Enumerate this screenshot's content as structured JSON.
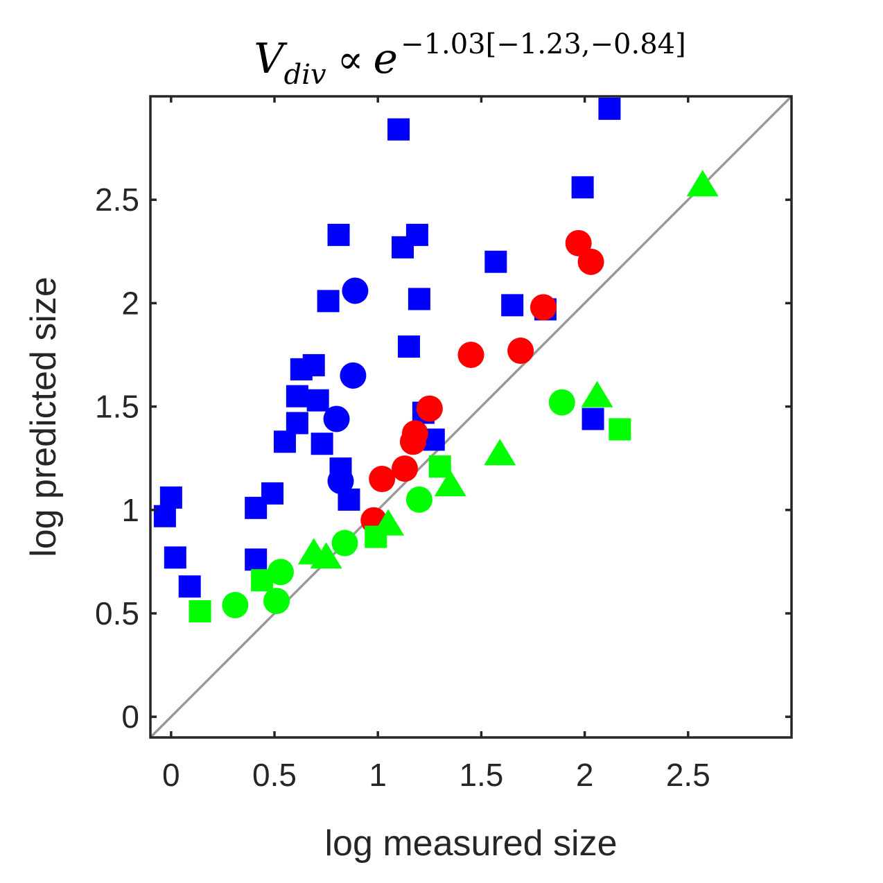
{
  "chart_data": {
    "type": "scatter",
    "title": {
      "lhs": "V",
      "subscript": "div",
      "relation": "∝",
      "base": "e",
      "exponent": "−1.03[−1.23,−0.84]"
    },
    "xlabel": "log measured size",
    "ylabel": "log predicted size",
    "xlim": [
      -0.1,
      3.0
    ],
    "ylim": [
      -0.1,
      3.0
    ],
    "xticks": [
      0,
      0.5,
      1,
      1.5,
      2,
      2.5
    ],
    "xtick_labels": [
      "0",
      "0.5",
      "1",
      "1.5",
      "2",
      "2.5"
    ],
    "yticks": [
      0,
      0.5,
      1,
      1.5,
      2,
      2.5
    ],
    "ytick_labels": [
      "0",
      "0.5",
      "1",
      "1.5",
      "2",
      "2.5"
    ],
    "grid": false,
    "reference_line": {
      "type": "identity",
      "color": "#999999"
    },
    "colors": {
      "blue": "#0000ff",
      "red": "#ff0000",
      "green": "#00ff00",
      "axes": "#262626"
    },
    "series": [
      {
        "color": "blue",
        "marker": "square",
        "points": [
          [
            -0.03,
            0.97
          ],
          [
            0.0,
            1.06
          ],
          [
            0.02,
            0.77
          ],
          [
            0.09,
            0.63
          ],
          [
            0.41,
            1.01
          ],
          [
            0.41,
            0.76
          ],
          [
            0.49,
            1.08
          ],
          [
            0.55,
            1.33
          ],
          [
            0.61,
            1.42
          ],
          [
            0.61,
            1.55
          ],
          [
            0.63,
            1.68
          ],
          [
            0.69,
            1.7
          ],
          [
            0.71,
            1.53
          ],
          [
            0.73,
            1.32
          ],
          [
            0.76,
            2.01
          ],
          [
            0.81,
            2.33
          ],
          [
            0.82,
            1.2
          ],
          [
            0.86,
            1.05
          ],
          [
            1.1,
            2.84
          ],
          [
            1.12,
            2.27
          ],
          [
            1.15,
            1.79
          ],
          [
            1.19,
            2.33
          ],
          [
            1.2,
            2.02
          ],
          [
            1.22,
            1.47
          ],
          [
            1.27,
            1.34
          ],
          [
            1.57,
            2.2
          ],
          [
            1.65,
            1.99
          ],
          [
            1.81,
            1.97
          ],
          [
            1.99,
            2.56
          ],
          [
            2.04,
            1.44
          ],
          [
            2.12,
            2.94
          ]
        ]
      },
      {
        "color": "blue",
        "marker": "circle",
        "points": [
          [
            0.8,
            1.44
          ],
          [
            0.82,
            1.14
          ],
          [
            0.88,
            1.65
          ],
          [
            0.89,
            2.06
          ]
        ]
      },
      {
        "color": "red",
        "marker": "circle",
        "points": [
          [
            0.98,
            0.95
          ],
          [
            1.02,
            1.15
          ],
          [
            1.13,
            1.2
          ],
          [
            1.17,
            1.33
          ],
          [
            1.18,
            1.37
          ],
          [
            1.25,
            1.49
          ],
          [
            1.45,
            1.75
          ],
          [
            1.69,
            1.77
          ],
          [
            1.8,
            1.98
          ],
          [
            1.97,
            2.29
          ],
          [
            2.03,
            2.2
          ]
        ]
      },
      {
        "color": "green",
        "marker": "square",
        "points": [
          [
            0.14,
            0.51
          ],
          [
            0.44,
            0.66
          ],
          [
            0.99,
            0.87
          ],
          [
            1.3,
            1.21
          ],
          [
            2.17,
            1.39
          ]
        ]
      },
      {
        "color": "green",
        "marker": "circle",
        "points": [
          [
            0.31,
            0.54
          ],
          [
            0.51,
            0.56
          ],
          [
            0.53,
            0.7
          ],
          [
            0.84,
            0.84
          ],
          [
            1.2,
            1.05
          ],
          [
            1.89,
            1.52
          ]
        ]
      },
      {
        "color": "green",
        "marker": "triangle",
        "points": [
          [
            0.69,
            0.79
          ],
          [
            0.75,
            0.77
          ],
          [
            1.05,
            0.93
          ],
          [
            1.35,
            1.12
          ],
          [
            1.59,
            1.27
          ],
          [
            2.06,
            1.55
          ],
          [
            2.57,
            2.57
          ]
        ]
      }
    ]
  }
}
